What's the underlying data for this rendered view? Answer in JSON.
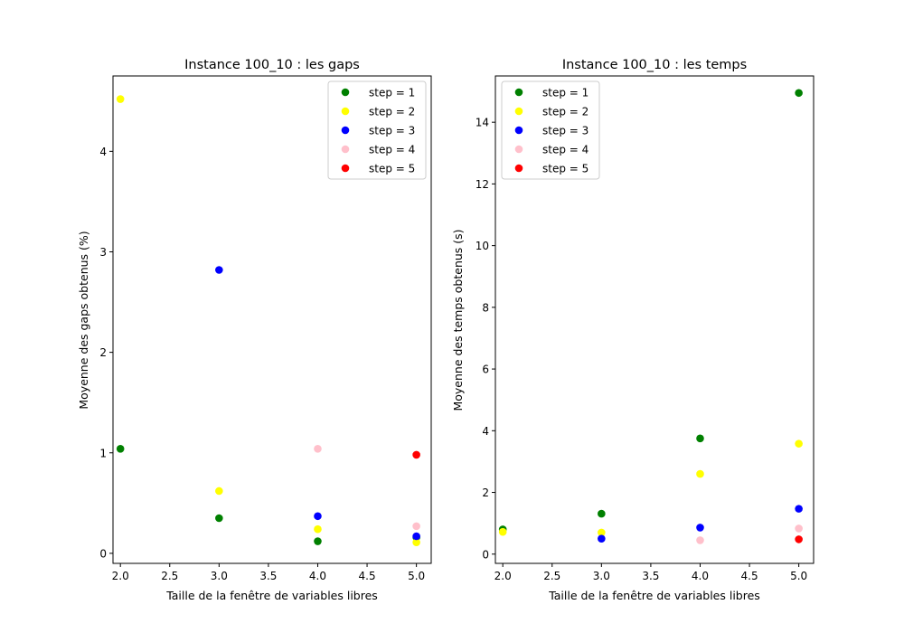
{
  "chart_data": [
    {
      "type": "scatter",
      "title": "Instance 100_10 : les gaps",
      "xlabel": "Taille de la fenêtre de variables libres",
      "ylabel": "Moyenne des gaps obtenus (%)",
      "xlim": [
        1.925,
        5.15
      ],
      "ylim": [
        -0.1,
        4.75
      ],
      "xticks": [
        2.0,
        2.5,
        3.0,
        3.5,
        4.0,
        4.5,
        5.0
      ],
      "xtick_labels": [
        "2.0",
        "2.5",
        "3.0",
        "3.5",
        "4.0",
        "4.5",
        "5.0"
      ],
      "yticks": [
        0,
        1,
        2,
        3,
        4
      ],
      "ytick_labels": [
        "0",
        "1",
        "2",
        "3",
        "4"
      ],
      "legend_position": "top-right",
      "series": [
        {
          "name": "step = 1",
          "color": "#008000",
          "points": [
            {
              "x": 2,
              "y": 1.04
            },
            {
              "x": 3,
              "y": 0.35
            },
            {
              "x": 4,
              "y": 0.12
            },
            {
              "x": 5,
              "y": 0.16
            }
          ]
        },
        {
          "name": "step = 2",
          "color": "#ffff00",
          "points": [
            {
              "x": 2,
              "y": 4.52
            },
            {
              "x": 3,
              "y": 0.62
            },
            {
              "x": 4,
              "y": 0.24
            },
            {
              "x": 5,
              "y": 0.11
            }
          ]
        },
        {
          "name": "step = 3",
          "color": "#0000ff",
          "points": [
            {
              "x": 3,
              "y": 2.82
            },
            {
              "x": 4,
              "y": 0.37
            },
            {
              "x": 5,
              "y": 0.17
            }
          ]
        },
        {
          "name": "step = 4",
          "color": "#ffc0cb",
          "points": [
            {
              "x": 4,
              "y": 1.04
            },
            {
              "x": 5,
              "y": 0.27
            }
          ]
        },
        {
          "name": "step = 5",
          "color": "#ff0000",
          "points": [
            {
              "x": 5,
              "y": 0.98
            }
          ]
        }
      ]
    },
    {
      "type": "scatter",
      "title": "Instance 100_10 : les temps",
      "xlabel": "Taille de la fenêtre de variables libres",
      "ylabel": "Moyenne des temps obtenus (s)",
      "xlim": [
        1.925,
        5.15
      ],
      "ylim": [
        -0.3,
        15.5
      ],
      "xticks": [
        2.0,
        2.5,
        3.0,
        3.5,
        4.0,
        4.5,
        5.0
      ],
      "xtick_labels": [
        "2.0",
        "2.5",
        "3.0",
        "3.5",
        "4.0",
        "4.5",
        "5.0"
      ],
      "yticks": [
        0,
        2,
        4,
        6,
        8,
        10,
        12,
        14
      ],
      "ytick_labels": [
        "0",
        "2",
        "4",
        "6",
        "8",
        "10",
        "12",
        "14"
      ],
      "legend_position": "top-left",
      "series": [
        {
          "name": "step = 1",
          "color": "#008000",
          "points": [
            {
              "x": 2,
              "y": 0.8
            },
            {
              "x": 3,
              "y": 1.31
            },
            {
              "x": 4,
              "y": 3.75
            },
            {
              "x": 5,
              "y": 14.95
            }
          ]
        },
        {
          "name": "step = 2",
          "color": "#ffff00",
          "points": [
            {
              "x": 2,
              "y": 0.72
            },
            {
              "x": 3,
              "y": 0.7
            },
            {
              "x": 4,
              "y": 2.6
            },
            {
              "x": 5,
              "y": 3.58
            }
          ]
        },
        {
          "name": "step = 3",
          "color": "#0000ff",
          "points": [
            {
              "x": 3,
              "y": 0.5
            },
            {
              "x": 4,
              "y": 0.86
            },
            {
              "x": 5,
              "y": 1.47
            }
          ]
        },
        {
          "name": "step = 4",
          "color": "#ffc0cb",
          "points": [
            {
              "x": 4,
              "y": 0.45
            },
            {
              "x": 5,
              "y": 0.83
            }
          ]
        },
        {
          "name": "step = 5",
          "color": "#ff0000",
          "points": [
            {
              "x": 5,
              "y": 0.48
            }
          ]
        }
      ]
    }
  ]
}
